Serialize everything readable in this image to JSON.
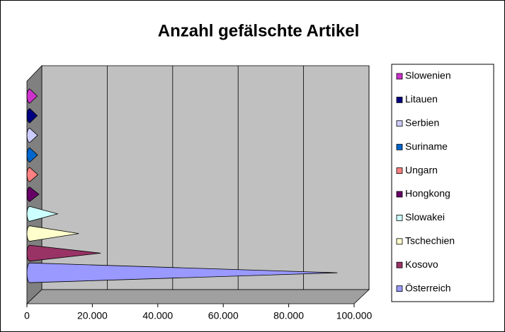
{
  "chart_data": {
    "type": "bar",
    "orientation": "horizontal",
    "style": "3d-cone",
    "title": "Anzahl gefälschte Artikel",
    "series": [
      {
        "name": "Slowenien",
        "color": "#cc33cc",
        "values": [
          2300
        ]
      },
      {
        "name": "Litauen",
        "color": "#000080",
        "values": [
          2300
        ]
      },
      {
        "name": "Serbien",
        "color": "#ccccff",
        "values": [
          2400
        ]
      },
      {
        "name": "Suriname",
        "color": "#0066cc",
        "values": [
          2400
        ]
      },
      {
        "name": "Ungarn",
        "color": "#ff8080",
        "values": [
          2500
        ]
      },
      {
        "name": "Hongkong",
        "color": "#660066",
        "values": [
          2800
        ]
      },
      {
        "name": "Slowakei",
        "color": "#ccffff",
        "values": [
          8500
        ]
      },
      {
        "name": "Tschechien",
        "color": "#ffffcc",
        "values": [
          15000
        ]
      },
      {
        "name": "Kosovo",
        "color": "#993366",
        "values": [
          21700
        ]
      },
      {
        "name": "Österreich",
        "color": "#9999ff",
        "values": [
          94000
        ]
      }
    ],
    "xlim": [
      0,
      100000
    ],
    "xticks": [
      0,
      {
        "value": 20000,
        "label": "20.000"
      },
      {
        "value": 40000,
        "label": "40.000"
      },
      {
        "value": 60000,
        "label": "60.000"
      },
      {
        "value": 80000,
        "label": "80.000"
      },
      {
        "value": 100000,
        "label": "100.000"
      }
    ],
    "grid": true,
    "legend": "right"
  }
}
